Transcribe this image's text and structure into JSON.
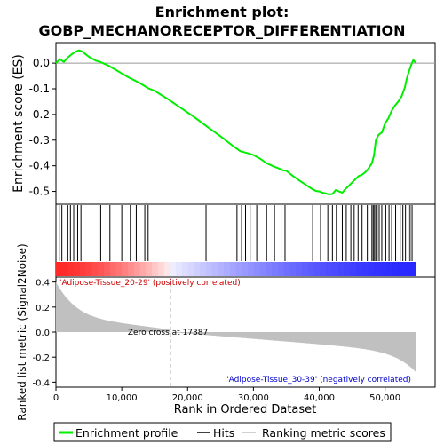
{
  "chart_data": {
    "type": "line",
    "title_line1": "Enrichment plot:",
    "title_line2": "GOBP_MECHANORECEPTOR_DIFFERENTIATION",
    "es_panel": {
      "ylabel": "Enrichment score (ES)",
      "ylim": [
        -0.55,
        0.08
      ],
      "yticks": [
        0.0,
        -0.1,
        -0.2,
        -0.3,
        -0.4,
        -0.5
      ],
      "ytick_labels": [
        "0.0",
        "-0.1",
        "-0.2",
        "-0.3",
        "-0.4",
        "-0.5"
      ],
      "curve_color": "#00ee00",
      "points": [
        [
          0,
          0.0
        ],
        [
          600,
          0.015
        ],
        [
          1200,
          0.005
        ],
        [
          1800,
          0.022
        ],
        [
          2400,
          0.035
        ],
        [
          3000,
          0.045
        ],
        [
          3500,
          0.05
        ],
        [
          4000,
          0.045
        ],
        [
          5000,
          0.025
        ],
        [
          6000,
          0.01
        ],
        [
          6700,
          0.005
        ],
        [
          7300,
          -0.002
        ],
        [
          8000,
          -0.01
        ],
        [
          9000,
          -0.025
        ],
        [
          10000,
          -0.04
        ],
        [
          11000,
          -0.055
        ],
        [
          12000,
          -0.068
        ],
        [
          13000,
          -0.082
        ],
        [
          14000,
          -0.098
        ],
        [
          15000,
          -0.108
        ],
        [
          17000,
          -0.14
        ],
        [
          19000,
          -0.175
        ],
        [
          21000,
          -0.21
        ],
        [
          23000,
          -0.248
        ],
        [
          25000,
          -0.285
        ],
        [
          27000,
          -0.325
        ],
        [
          28000,
          -0.343
        ],
        [
          29000,
          -0.35
        ],
        [
          30000,
          -0.358
        ],
        [
          31000,
          -0.372
        ],
        [
          32000,
          -0.39
        ],
        [
          33000,
          -0.402
        ],
        [
          34000,
          -0.412
        ],
        [
          34500,
          -0.418
        ],
        [
          35000,
          -0.42
        ],
        [
          36000,
          -0.44
        ],
        [
          37000,
          -0.458
        ],
        [
          38000,
          -0.475
        ],
        [
          39000,
          -0.492
        ],
        [
          39500,
          -0.498
        ],
        [
          40000,
          -0.5
        ],
        [
          40500,
          -0.505
        ],
        [
          41000,
          -0.508
        ],
        [
          41500,
          -0.512
        ],
        [
          42000,
          -0.51
        ],
        [
          42500,
          -0.495
        ],
        [
          43000,
          -0.5
        ],
        [
          43500,
          -0.505
        ],
        [
          44000,
          -0.49
        ],
        [
          44500,
          -0.478
        ],
        [
          45000,
          -0.465
        ],
        [
          45500,
          -0.452
        ],
        [
          46000,
          -0.44
        ],
        [
          46500,
          -0.435
        ],
        [
          47000,
          -0.425
        ],
        [
          47500,
          -0.41
        ],
        [
          48000,
          -0.39
        ],
        [
          48300,
          -0.36
        ],
        [
          48600,
          -0.3
        ],
        [
          49000,
          -0.28
        ],
        [
          49500,
          -0.27
        ],
        [
          50000,
          -0.235
        ],
        [
          50500,
          -0.215
        ],
        [
          51000,
          -0.185
        ],
        [
          51500,
          -0.165
        ],
        [
          52000,
          -0.15
        ],
        [
          52500,
          -0.13
        ],
        [
          53000,
          -0.095
        ],
        [
          53300,
          -0.06
        ],
        [
          53600,
          -0.035
        ],
        [
          54000,
          -0.005
        ],
        [
          54300,
          0.012
        ],
        [
          54700,
          0.0
        ]
      ],
      "hits": [
        500,
        900,
        1800,
        2200,
        2700,
        3300,
        3800,
        6800,
        8200,
        10000,
        11300,
        12200,
        13500,
        14000,
        22800,
        27500,
        28200,
        28800,
        29500,
        30500,
        32000,
        33200,
        34200,
        34800,
        39000,
        40200,
        41300,
        42000,
        42600,
        43500,
        44100,
        44800,
        45300,
        45900,
        46500,
        47300,
        48000,
        48200,
        48400,
        48600,
        48800,
        49100,
        49500,
        50100,
        50600,
        51000,
        51600,
        52300,
        52700,
        53100,
        53500,
        53800,
        54100
      ]
    },
    "rank_panel": {
      "ylabel": "Ranked list metric (Signal2Noise)",
      "xlabel": "Rank in Ordered Dataset",
      "ylim": [
        -0.44,
        0.44
      ],
      "yticks": [
        0.4,
        0.2,
        0.0,
        -0.2,
        -0.4
      ],
      "ytick_labels": [
        "0.4",
        "0.2",
        "0.0",
        "-0.2",
        "-0.4"
      ],
      "xlim": [
        0,
        57600
      ],
      "xticks": [
        0,
        10000,
        20000,
        30000,
        40000,
        50000
      ],
      "xtick_labels": [
        "0",
        "10,000",
        "20,000",
        "30,000",
        "40,000",
        "50,000"
      ],
      "n_genes": 54675,
      "zero_cross": 17387,
      "zero_cross_label": "Zero cross at 17387",
      "pos_label": "'Adipose-Tissue_20-29' (positively correlated)",
      "neg_label": "'Adipose-Tissue_30-39' (negatively correlated)",
      "pos_color": "#ff0000",
      "neg_color": "#0000ff",
      "metric_color": "#c0c0c0"
    },
    "legend": {
      "placement": "bottom",
      "entries": [
        "Enrichment profile",
        "Hits",
        "Ranking metric scores"
      ]
    }
  }
}
